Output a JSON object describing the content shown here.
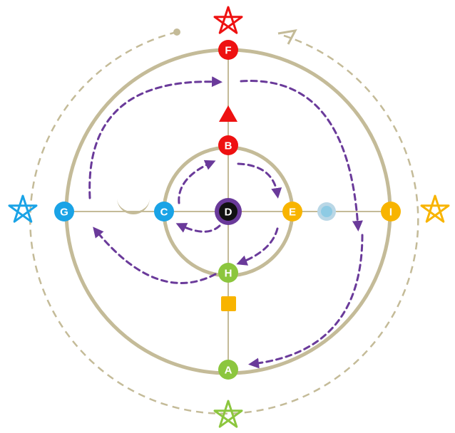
{
  "colors": {
    "ring": "#c4bb98",
    "flow": "#6a3a9a",
    "red": "#ee1111",
    "blue": "#1aa3e6",
    "yellow": "#f8b400",
    "green": "#8cc63e",
    "dark": "#111111",
    "light_blue": "#8ecbe4",
    "orange_square": "#f8b400"
  },
  "nodes": {
    "F": {
      "label": "F",
      "color": "red"
    },
    "B": {
      "label": "B",
      "color": "red"
    },
    "D": {
      "label": "D",
      "color": "dark"
    },
    "C": {
      "label": "C",
      "color": "blue"
    },
    "G": {
      "label": "G",
      "color": "blue"
    },
    "E": {
      "label": "E",
      "color": "yellow"
    },
    "I": {
      "label": "I",
      "color": "yellow"
    },
    "H": {
      "label": "H",
      "color": "green"
    },
    "A": {
      "label": "A",
      "color": "green"
    }
  },
  "symbols": {
    "star_top": {
      "icon": "pentagram-icon",
      "color": "red"
    },
    "star_left": {
      "icon": "pentagram-icon",
      "color": "blue"
    },
    "star_right": {
      "icon": "pentagram-icon",
      "color": "yellow"
    },
    "star_bottom": {
      "icon": "pentagram-icon",
      "color": "green"
    },
    "triangle": {
      "icon": "triangle-icon",
      "color": "red"
    },
    "crescent": {
      "icon": "crescent-icon",
      "color": "ring"
    },
    "dot": {
      "icon": "circle-icon",
      "color": "light_blue"
    },
    "square": {
      "icon": "square-icon",
      "color": "orange_square"
    }
  }
}
